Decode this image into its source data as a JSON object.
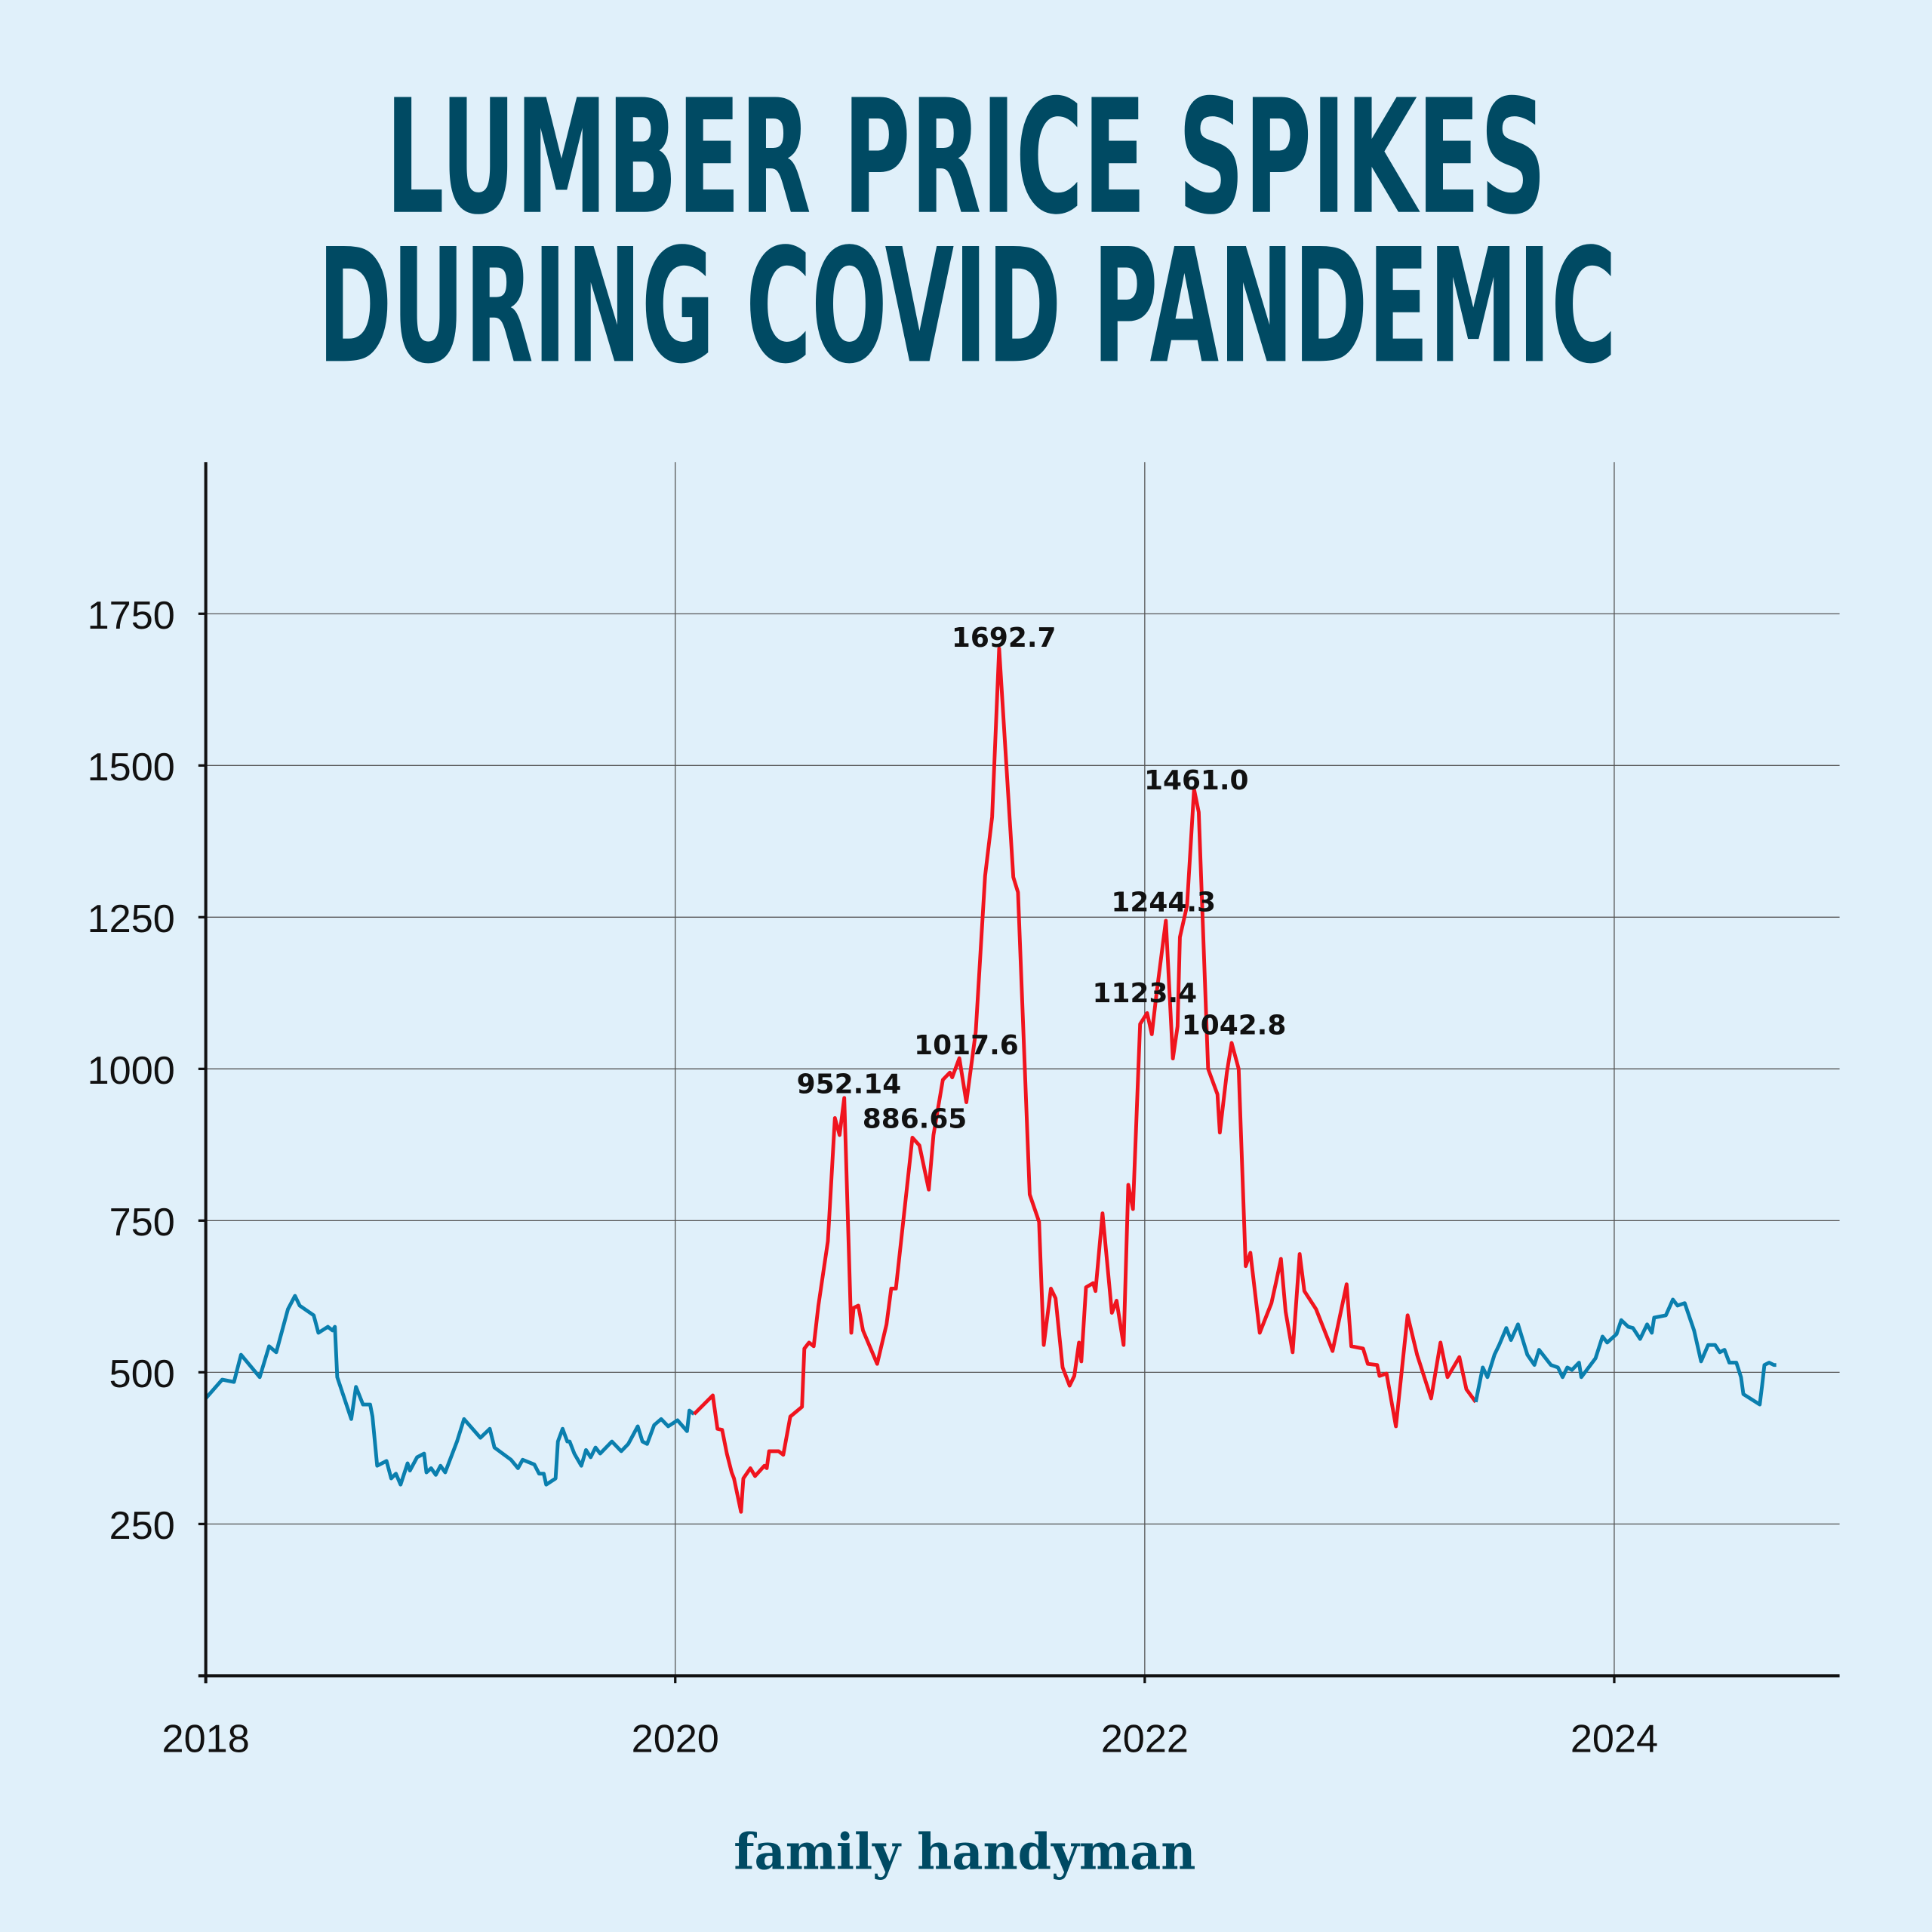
{
  "title_lines": [
    "LUMBER PRICE SPIKES",
    "DURING COVID PANDEMIC"
  ],
  "logo": "family handyman",
  "colors": {
    "background": "#e0f0fa",
    "title": "#004a63",
    "normal": "#0a7fae",
    "spike": "#f0141e",
    "grid": "#555555"
  },
  "chart_data": {
    "type": "line",
    "title": "LUMBER PRICE SPIKES DURING COVID PANDEMIC",
    "xlabel": "",
    "ylabel": "",
    "xlim": [
      2018,
      2024.96
    ],
    "ylim": [
      0,
      2000
    ],
    "xticks": [
      "2018",
      "2020",
      "2022",
      "2024"
    ],
    "yticks": [
      "250",
      "500",
      "750",
      "1000",
      "1250",
      "1500",
      "1750"
    ],
    "grid": true,
    "series": [
      {
        "color": "#0a7fae",
        "x": [
          2018.0,
          2018.07,
          2018.12,
          2018.15,
          2018.23,
          2018.27,
          2018.3,
          2018.35,
          2018.38,
          2018.4,
          2018.46,
          2018.48,
          2018.52,
          2018.54,
          2018.55,
          2018.56,
          2018.62,
          2018.64,
          2018.67,
          2018.7,
          2018.71,
          2018.73,
          2018.77,
          2018.79,
          2018.81,
          2018.83,
          2018.86,
          2018.87,
          2018.9,
          2018.93,
          2018.94,
          2018.96,
          2018.98,
          2019.0,
          2019.02,
          2019.07,
          2019.1,
          2019.17,
          2019.21,
          2019.23,
          2019.3,
          2019.33,
          2019.35,
          2019.4,
          2019.42,
          2019.44,
          2019.45,
          2019.49,
          2019.5,
          2019.52,
          2019.54,
          2019.55,
          2019.57,
          2019.6,
          2019.62,
          2019.64,
          2019.66,
          2019.68,
          2019.73,
          2019.77,
          2019.8,
          2019.84,
          2019.86,
          2019.88,
          2019.91,
          2019.94,
          2019.97,
          2020.01,
          2020.05,
          2020.06,
          2020.08
        ],
        "y": [
          457,
          488,
          484,
          529,
          492,
          543,
          533,
          604,
          626,
          610,
          594,
          565,
          575,
          569,
          575,
          492,
          423,
          476,
          447,
          447,
          427,
          346,
          354,
          325,
          333,
          315,
          350,
          338,
          360,
          366,
          335,
          342,
          331,
          346,
          335,
          386,
          423,
          392,
          407,
          376,
          356,
          342,
          356,
          348,
          333,
          333,
          315,
          325,
          386,
          407,
          386,
          386,
          366,
          346,
          372,
          360,
          376,
          366,
          386,
          370,
          382,
          411,
          386,
          382,
          413,
          423,
          411,
          421,
          403,
          437,
          431
        ]
      },
      {
        "color": "#f0141e",
        "x": [
          2020.08,
          2020.16,
          2020.18,
          2020.2,
          2020.22,
          2020.24,
          2020.25,
          2020.28,
          2020.29,
          2020.32,
          2020.34,
          2020.38,
          2020.39,
          2020.4,
          2020.44,
          2020.46,
          2020.49,
          2020.54,
          2020.55,
          2020.57,
          2020.59,
          2020.61,
          2020.65,
          2020.68,
          2020.7,
          2020.72,
          2020.75,
          2020.76,
          2020.78,
          2020.8,
          2020.86,
          2020.9,
          2020.92,
          2020.94,
          2021.01,
          2021.04,
          2021.08,
          2021.1,
          2021.14,
          2021.17,
          2021.18,
          2021.21,
          2021.24,
          2021.28,
          2021.32,
          2021.35,
          2021.38,
          2021.44,
          2021.46,
          2021.51,
          2021.55,
          2021.57,
          2021.6,
          2021.62,
          2021.65,
          2021.68,
          2021.7,
          2021.72,
          2021.73,
          2021.75,
          2021.78,
          2021.79,
          2021.82,
          2021.86,
          2021.88,
          2021.91,
          2021.93,
          2021.95,
          2021.98,
          2022.01,
          2022.03,
          2022.05,
          2022.09,
          2022.12,
          2022.14,
          2022.15,
          2022.18,
          2022.21,
          2022.23,
          2022.27,
          2022.31,
          2022.32,
          2022.35,
          2022.37,
          2022.4,
          2022.43,
          2022.45,
          2022.49,
          2022.54,
          2022.56,
          2022.58,
          2022.6,
          2022.63,
          2022.66,
          2022.68,
          2022.73,
          2022.8,
          2022.86,
          2022.88,
          2022.93,
          2022.95,
          2022.99,
          2023.0,
          2023.03,
          2023.07,
          2023.12,
          2023.16,
          2023.22,
          2023.26,
          2023.29,
          2023.34,
          2023.37,
          2023.41
        ],
        "y": [
          431,
          462,
          407,
          405,
          366,
          335,
          325,
          270,
          325,
          342,
          329,
          346,
          342,
          370,
          370,
          364,
          427,
          443,
          539,
          549,
          543,
          610,
          716,
          919,
          891,
          952.14,
          565,
          606,
          610,
          569,
          514,
          579,
          638,
          638,
          886.65,
          874,
          801,
          891,
          982,
          994,
          986,
          1017.6,
          945,
          1061,
          1318,
          1415,
          1692.7,
          1316,
          1291,
          793,
          748,
          545,
          638,
          622,
          508,
          478,
          494,
          549,
          518,
          640,
          647,
          634,
          762,
          598,
          618,
          545,
          809,
          769,
          1074,
          1092,
          1057,
          1123.4,
          1244.3,
          1017,
          1070,
          1217,
          1269,
          1461.0,
          1423,
          1000,
          958,
          895,
          994,
          1042.8,
          1000,
          675,
          697,
          565,
          614,
          650,
          687,
          600,
          533,
          695,
          634,
          604,
          535,
          645,
          543,
          539,
          514,
          512,
          494,
          498,
          411,
          594,
          529,
          457,
          549,
          492,
          525,
          472,
          451
        ]
      },
      {
        "color": "#0a7fae",
        "x": [
          2023.41,
          2023.44,
          2023.46,
          2023.49,
          2023.51,
          2023.54,
          2023.56,
          2023.59,
          2023.63,
          2023.66,
          2023.68,
          2023.73,
          2023.76,
          2023.78,
          2023.8,
          2023.82,
          2023.85,
          2023.86,
          2023.92,
          2023.95,
          2023.97,
          2024.01,
          2024.03,
          2024.06,
          2024.08,
          2024.11,
          2024.14,
          2024.16,
          2024.17,
          2024.22,
          2024.25,
          2024.27,
          2024.3,
          2024.34,
          2024.37,
          2024.4,
          2024.43,
          2024.45,
          2024.47,
          2024.49,
          2024.52,
          2024.54,
          2024.55,
          2024.62,
          2024.63,
          2024.64,
          2024.66,
          2024.68,
          2024.69
        ],
        "y": [
          451,
          508,
          492,
          529,
          545,
          573,
          553,
          579,
          529,
          512,
          537,
          512,
          508,
          492,
          508,
          504,
          516,
          492,
          523,
          559,
          549,
          563,
          586,
          575,
          573,
          555,
          579,
          565,
          590,
          594,
          620,
          610,
          614,
          569,
          518,
          545,
          545,
          533,
          537,
          516,
          516,
          492,
          464,
          447,
          478,
          512,
          516,
          512,
          512
        ]
      }
    ],
    "annotations": [
      {
        "text": "1692.7",
        "x": 2021.4,
        "y": 1712
      },
      {
        "text": "1461.0",
        "x": 2022.22,
        "y": 1477
      },
      {
        "text": "1244.3",
        "x": 2022.08,
        "y": 1276
      },
      {
        "text": "1123.4",
        "x": 2022.0,
        "y": 1126
      },
      {
        "text": "1042.8",
        "x": 2022.38,
        "y": 1073
      },
      {
        "text": "1017.6",
        "x": 2021.24,
        "y": 1040
      },
      {
        "text": "952.14",
        "x": 2020.74,
        "y": 976
      },
      {
        "text": "886.65",
        "x": 2021.02,
        "y": 919
      }
    ]
  }
}
